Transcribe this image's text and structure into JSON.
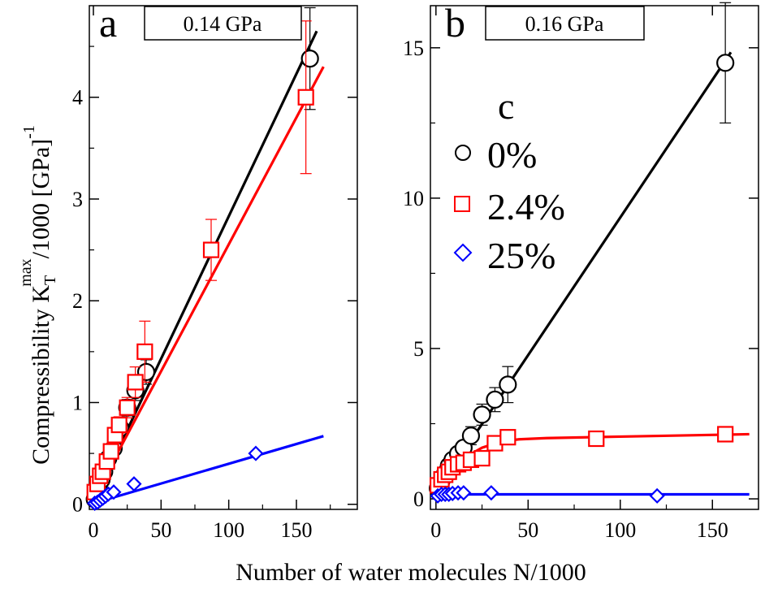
{
  "figure": {
    "xlabel": "Number of water molecules N/1000",
    "ylabel_main": "Compressibility K",
    "ylabel_sub": "T",
    "ylabel_sup": "max",
    "ylabel_tail": "/1000 [GPa]",
    "ylabel_exp": "-1",
    "legend_label": "c",
    "colors": {
      "series_0": "#000000",
      "series_2_4": "#ff0000",
      "series_25": "#0000ff"
    }
  },
  "chart_data": [
    {
      "type": "line",
      "panel": "a",
      "pressure": "0.14 GPa",
      "xlim": [
        -3,
        195
      ],
      "ylim": [
        -0.05,
        4.9
      ],
      "xticks": [
        "0",
        "50",
        "100",
        "150"
      ],
      "xtick_values": [
        0,
        50,
        100,
        150
      ],
      "yticks": [
        "0",
        "1",
        "2",
        "3",
        "4"
      ],
      "ytick_values": [
        0,
        1,
        2,
        3,
        4
      ],
      "series": [
        {
          "name": "0%",
          "marker": "circle",
          "x": [
            1,
            2,
            4,
            6,
            8,
            11,
            15,
            20,
            25,
            31,
            39,
            160
          ],
          "y": [
            0.05,
            0.1,
            0.18,
            0.24,
            0.32,
            0.45,
            0.55,
            0.75,
            0.95,
            1.12,
            1.3,
            4.38
          ],
          "err": [
            0,
            0,
            0,
            0,
            0,
            0,
            0.05,
            0.06,
            0.08,
            0.1,
            0.12,
            0.5
          ],
          "fit_x": [
            0,
            165
          ],
          "fit_y": [
            0.03,
            4.65
          ]
        },
        {
          "name": "2.4%",
          "marker": "square",
          "x": [
            1,
            3,
            5,
            7,
            10,
            13,
            16,
            19,
            25,
            31,
            38,
            87,
            157
          ],
          "y": [
            0.12,
            0.2,
            0.28,
            0.32,
            0.42,
            0.52,
            0.68,
            0.78,
            0.95,
            1.2,
            1.5,
            2.5,
            4.0
          ],
          "err": [
            0,
            0,
            0,
            0,
            0,
            0,
            0.07,
            0.08,
            0.1,
            0.15,
            0.3,
            0.3,
            0.75
          ],
          "fit_x": [
            0,
            170
          ],
          "fit_y": [
            0.06,
            4.3
          ]
        },
        {
          "name": "25%",
          "marker": "diamond",
          "x": [
            1,
            3,
            5,
            7,
            9,
            11,
            15,
            30,
            120
          ],
          "y": [
            0.01,
            0.02,
            0.04,
            0.06,
            0.08,
            0.1,
            0.12,
            0.2,
            0.5
          ],
          "err": [
            0,
            0,
            0,
            0,
            0,
            0,
            0,
            0,
            0
          ],
          "fit_x": [
            0,
            170
          ],
          "fit_y": [
            0.01,
            0.67
          ]
        }
      ]
    },
    {
      "type": "line",
      "panel": "b",
      "pressure": "0.16 GPa",
      "xlim": [
        -3,
        175
      ],
      "ylim": [
        -0.35,
        16.4
      ],
      "xticks": [
        "0",
        "50",
        "100",
        "150"
      ],
      "xtick_values": [
        0,
        50,
        100,
        150
      ],
      "yticks": [
        "0",
        "5",
        "10",
        "15"
      ],
      "ytick_values": [
        0,
        5,
        10,
        15
      ],
      "series": [
        {
          "name": "0%",
          "marker": "circle",
          "x": [
            1,
            3,
            5,
            7,
            9,
            12,
            15,
            19,
            25,
            32,
            39,
            157
          ],
          "y": [
            0.35,
            0.6,
            0.85,
            1.1,
            1.3,
            1.5,
            1.7,
            2.1,
            2.8,
            3.3,
            3.8,
            14.5
          ],
          "err": [
            0,
            0,
            0,
            0,
            0,
            0,
            0.2,
            0.3,
            0.35,
            0.4,
            0.6,
            2.0
          ],
          "fit_x": [
            0,
            160
          ],
          "fit_y": [
            0.2,
            14.85
          ]
        },
        {
          "name": "2.4%",
          "marker": "square",
          "x": [
            1,
            3,
            5,
            7,
            9,
            12,
            15,
            19,
            25,
            32,
            39,
            87,
            157
          ],
          "y": [
            0.45,
            0.65,
            0.8,
            0.9,
            1.05,
            1.15,
            1.2,
            1.3,
            1.35,
            1.85,
            2.05,
            2.0,
            2.15
          ],
          "err": [
            0,
            0,
            0,
            0,
            0,
            0,
            0,
            0,
            0,
            0,
            0,
            0,
            0
          ],
          "fit_x": [
            0,
            3,
            8,
            15,
            25,
            35,
            45,
            60,
            100,
            170
          ],
          "fit_y": [
            0.25,
            0.6,
            0.95,
            1.35,
            1.7,
            1.9,
            1.98,
            2.02,
            2.07,
            2.15
          ]
        },
        {
          "name": "25%",
          "marker": "diamond",
          "x": [
            1,
            3,
            5,
            7,
            9,
            12,
            15,
            30,
            120
          ],
          "y": [
            0.1,
            0.15,
            0.15,
            0.15,
            0.18,
            0.2,
            0.2,
            0.2,
            0.1
          ],
          "err": [
            0,
            0,
            0,
            0,
            0,
            0,
            0,
            0,
            0
          ],
          "fit_x": [
            0,
            170
          ],
          "fit_y": [
            0.15,
            0.15
          ]
        }
      ]
    }
  ]
}
